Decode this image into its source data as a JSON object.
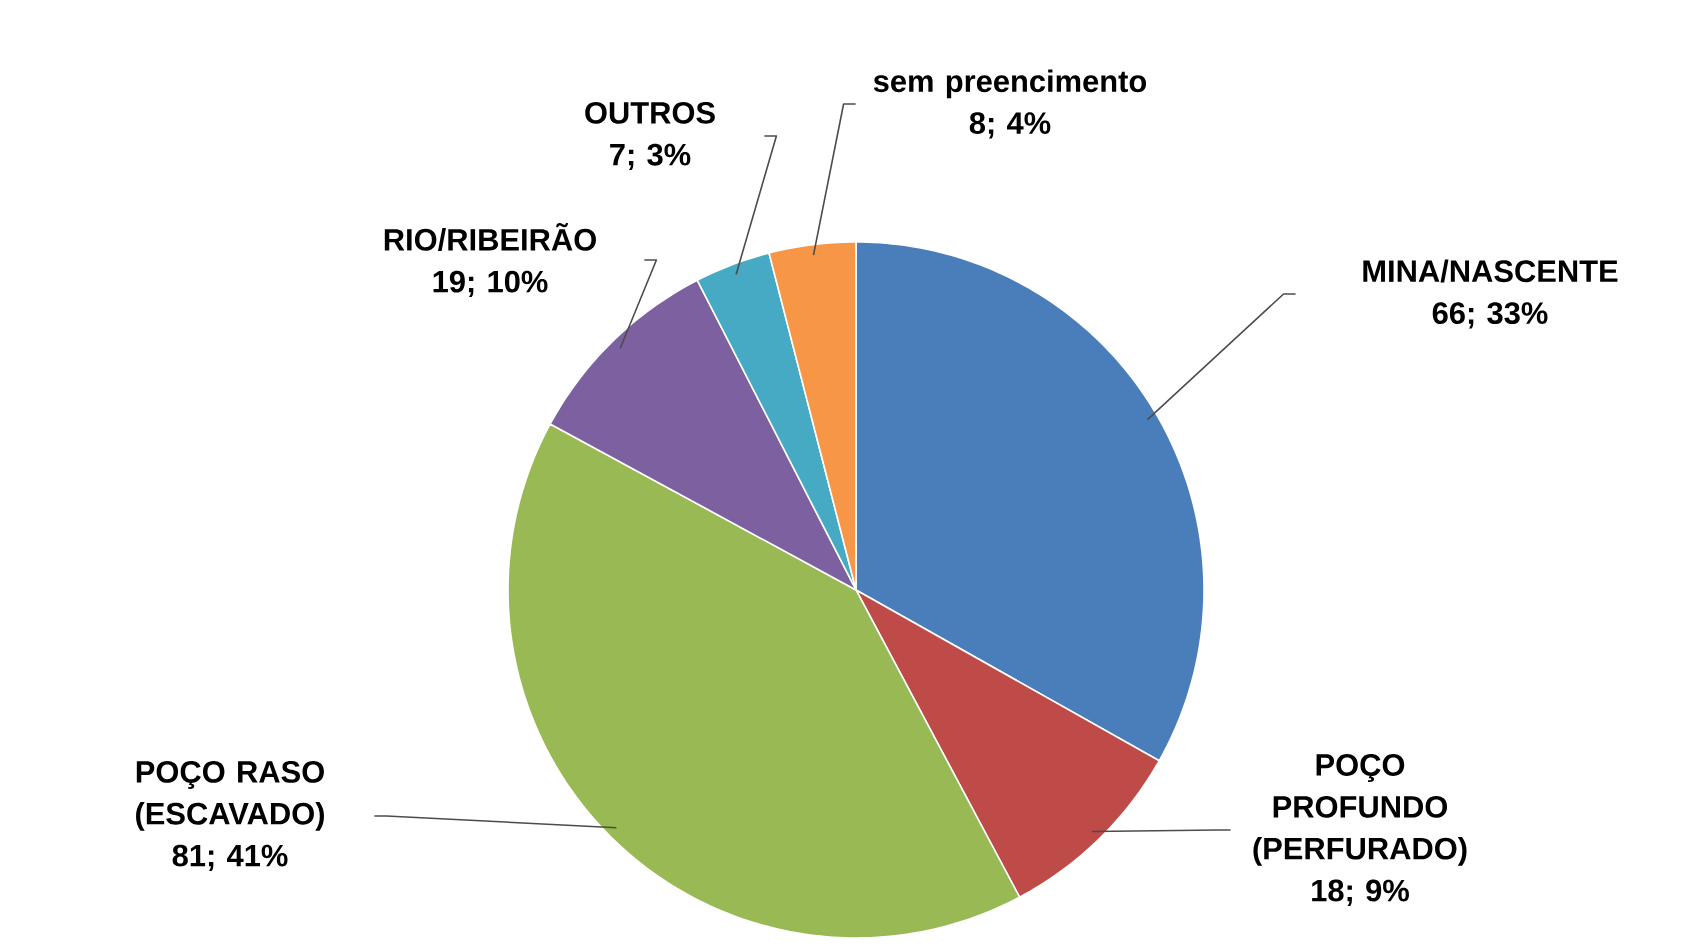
{
  "chart_data": {
    "type": "pie",
    "categories": [
      "MINA/NASCENTE",
      "POÇO PROFUNDO (PERFURADO)",
      "POÇO RASO (ESCAVADO)",
      "RIO/RIBEIRÃO",
      "OUTROS",
      "sem preencimento"
    ],
    "values": [
      66,
      18,
      81,
      19,
      7,
      8
    ],
    "value_labels": [
      "66; 33%",
      "18; 9%",
      "81; 41%",
      "19; 10%",
      "7; 3%",
      "8; 4%"
    ],
    "colors": [
      "#4a7ebb",
      "#be4b48",
      "#98b954",
      "#7d60a0",
      "#46aac5",
      "#f79646"
    ]
  }
}
